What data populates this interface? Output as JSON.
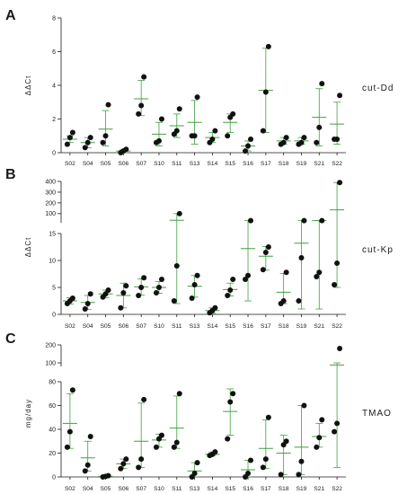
{
  "figure": {
    "colors": {
      "points": "#111111",
      "mean_and_error": "#3f9f3f",
      "axis": "#1a1a1a"
    }
  },
  "chart_data": [
    {
      "type": "scatter",
      "panel": "A",
      "label": "cut-Dd",
      "ylabel": "ΔΔCt",
      "xlabel": "",
      "categories": [
        "S02",
        "S04",
        "S05",
        "S06",
        "S07",
        "S10",
        "S11",
        "S13",
        "S14",
        "S15",
        "S16",
        "S17",
        "S18",
        "S19",
        "S21",
        "S22"
      ],
      "ylim": [
        0,
        8
      ],
      "yticks": [
        0,
        2,
        4,
        6,
        8
      ],
      "grid": false,
      "points": [
        [
          0.5,
          0.9,
          1.2
        ],
        [
          0.3,
          0.6,
          0.9
        ],
        [
          0.6,
          1.0,
          2.85
        ],
        [
          0.0,
          0.1,
          0.2
        ],
        [
          2.3,
          2.8,
          4.5
        ],
        [
          0.6,
          0.7,
          2.0
        ],
        [
          1.1,
          1.3,
          2.6
        ],
        [
          1.0,
          1.0,
          3.3
        ],
        [
          0.6,
          0.8,
          1.3
        ],
        [
          1.0,
          2.1,
          2.3
        ],
        [
          0.1,
          0.4,
          0.8
        ],
        [
          1.3,
          3.6,
          6.3
        ],
        [
          0.5,
          0.6,
          0.9
        ],
        [
          0.5,
          0.6,
          0.9
        ],
        [
          0.6,
          1.5,
          4.1
        ],
        [
          0.8,
          0.8,
          3.4
        ]
      ],
      "means": [
        0.8,
        0.6,
        1.4,
        0.1,
        3.2,
        1.1,
        1.6,
        1.8,
        0.9,
        1.8,
        0.4,
        3.7,
        0.7,
        0.7,
        2.1,
        1.7
      ],
      "error_low": [
        0.6,
        0.3,
        0.4,
        0.0,
        2.2,
        0.4,
        0.9,
        0.5,
        0.6,
        1.2,
        0.1,
        1.2,
        0.5,
        0.5,
        0.4,
        0.5
      ],
      "error_high": [
        1.0,
        0.9,
        2.5,
        0.2,
        4.3,
        1.8,
        2.3,
        3.1,
        1.2,
        2.3,
        0.7,
        6.2,
        0.9,
        0.9,
        3.8,
        3.0
      ]
    },
    {
      "type": "scatter",
      "panel": "B",
      "label": "cut-Kp",
      "ylabel": "ΔΔCt",
      "xlabel": "",
      "categories": [
        "S02",
        "S04",
        "S05",
        "S06",
        "S07",
        "S10",
        "S11",
        "S13",
        "S14",
        "S15",
        "S16",
        "S17",
        "S18",
        "S19",
        "S21",
        "S22"
      ],
      "ylim": [
        0,
        400
      ],
      "axis_break": {
        "lower_range": [
          0,
          15
        ],
        "upper_range": [
          15,
          400
        ]
      },
      "yticks_lower": [
        0,
        5,
        10,
        15
      ],
      "yticks_upper": [
        100,
        200,
        300,
        400
      ],
      "grid": false,
      "points": [
        [
          2.0,
          2.5,
          3.0
        ],
        [
          1.0,
          2.0,
          3.8
        ],
        [
          3.2,
          3.8,
          4.5
        ],
        [
          1.2,
          4.0,
          5.3
        ],
        [
          3.5,
          5.0,
          6.8
        ],
        [
          4.0,
          5.0,
          6.5
        ],
        [
          2.5,
          9.0,
          100
        ],
        [
          3.0,
          5.5,
          7.2
        ],
        [
          0.3,
          0.7,
          1.2
        ],
        [
          3.5,
          4.5,
          6.5
        ],
        [
          6.5,
          7.2,
          35
        ],
        [
          8.3,
          11.5,
          12.5
        ],
        [
          2.0,
          2.5,
          7.8
        ],
        [
          2.5,
          10.5,
          35
        ],
        [
          7.0,
          7.8,
          35
        ],
        [
          5.5,
          9.5,
          390
        ]
      ],
      "means": [
        2.5,
        2.2,
        3.8,
        3.5,
        5.1,
        5.0,
        38,
        5.2,
        0.7,
        4.6,
        12.2,
        10.8,
        4.1,
        13.2,
        35,
        135
      ],
      "error_low": [
        1.9,
        0.9,
        3.1,
        1.2,
        3.6,
        3.9,
        2.0,
        3.2,
        0.2,
        3.4,
        2.5,
        8.2,
        2.0,
        1.0,
        1.0,
        5.0
      ],
      "error_high": [
        3.1,
        3.5,
        4.5,
        5.8,
        6.6,
        6.1,
        100,
        7.2,
        1.2,
        5.8,
        35,
        12.6,
        7.6,
        35,
        35,
        390
      ]
    },
    {
      "type": "scatter",
      "panel": "C",
      "label": "TMAO",
      "ylabel": "mg/day",
      "xlabel": "",
      "categories": [
        "S02",
        "S04",
        "S05",
        "S06",
        "S07",
        "S10",
        "S11",
        "S13",
        "S14",
        "S15",
        "S16",
        "S17",
        "S18",
        "S19",
        "S21",
        "S22"
      ],
      "ylim": [
        0,
        200
      ],
      "axis_break": {
        "lower_range": [
          0,
          80
        ],
        "upper_range": [
          80,
          200
        ]
      },
      "yticks_lower": [
        0,
        20,
        40,
        60,
        80
      ],
      "yticks_upper": [
        100,
        200
      ],
      "grid": false,
      "points": [
        [
          25,
          38,
          73
        ],
        [
          5,
          10,
          34
        ],
        [
          0,
          0.5,
          1
        ],
        [
          7,
          11,
          15
        ],
        [
          8,
          15,
          65
        ],
        [
          25,
          32,
          35
        ],
        [
          25,
          29,
          70
        ],
        [
          0,
          3,
          12
        ],
        [
          18,
          19,
          21
        ],
        [
          32,
          63,
          70
        ],
        [
          0,
          3,
          14
        ],
        [
          8,
          15,
          50
        ],
        [
          2,
          27,
          30
        ],
        [
          2,
          13,
          60
        ],
        [
          25,
          33,
          48
        ],
        [
          38,
          45,
          180
        ]
      ],
      "means": [
        45,
        16,
        0.5,
        11,
        30,
        31,
        41,
        5,
        19,
        55,
        6,
        24,
        20,
        25,
        34,
        88
      ],
      "error_low": [
        24,
        5,
        0,
        7,
        8,
        25,
        24,
        0,
        18,
        35,
        0,
        7,
        2,
        2,
        25,
        8
      ],
      "error_high": [
        70,
        30,
        1,
        15,
        62,
        36,
        68,
        12,
        21,
        74,
        14,
        48,
        35,
        60,
        45,
        100
      ]
    }
  ]
}
